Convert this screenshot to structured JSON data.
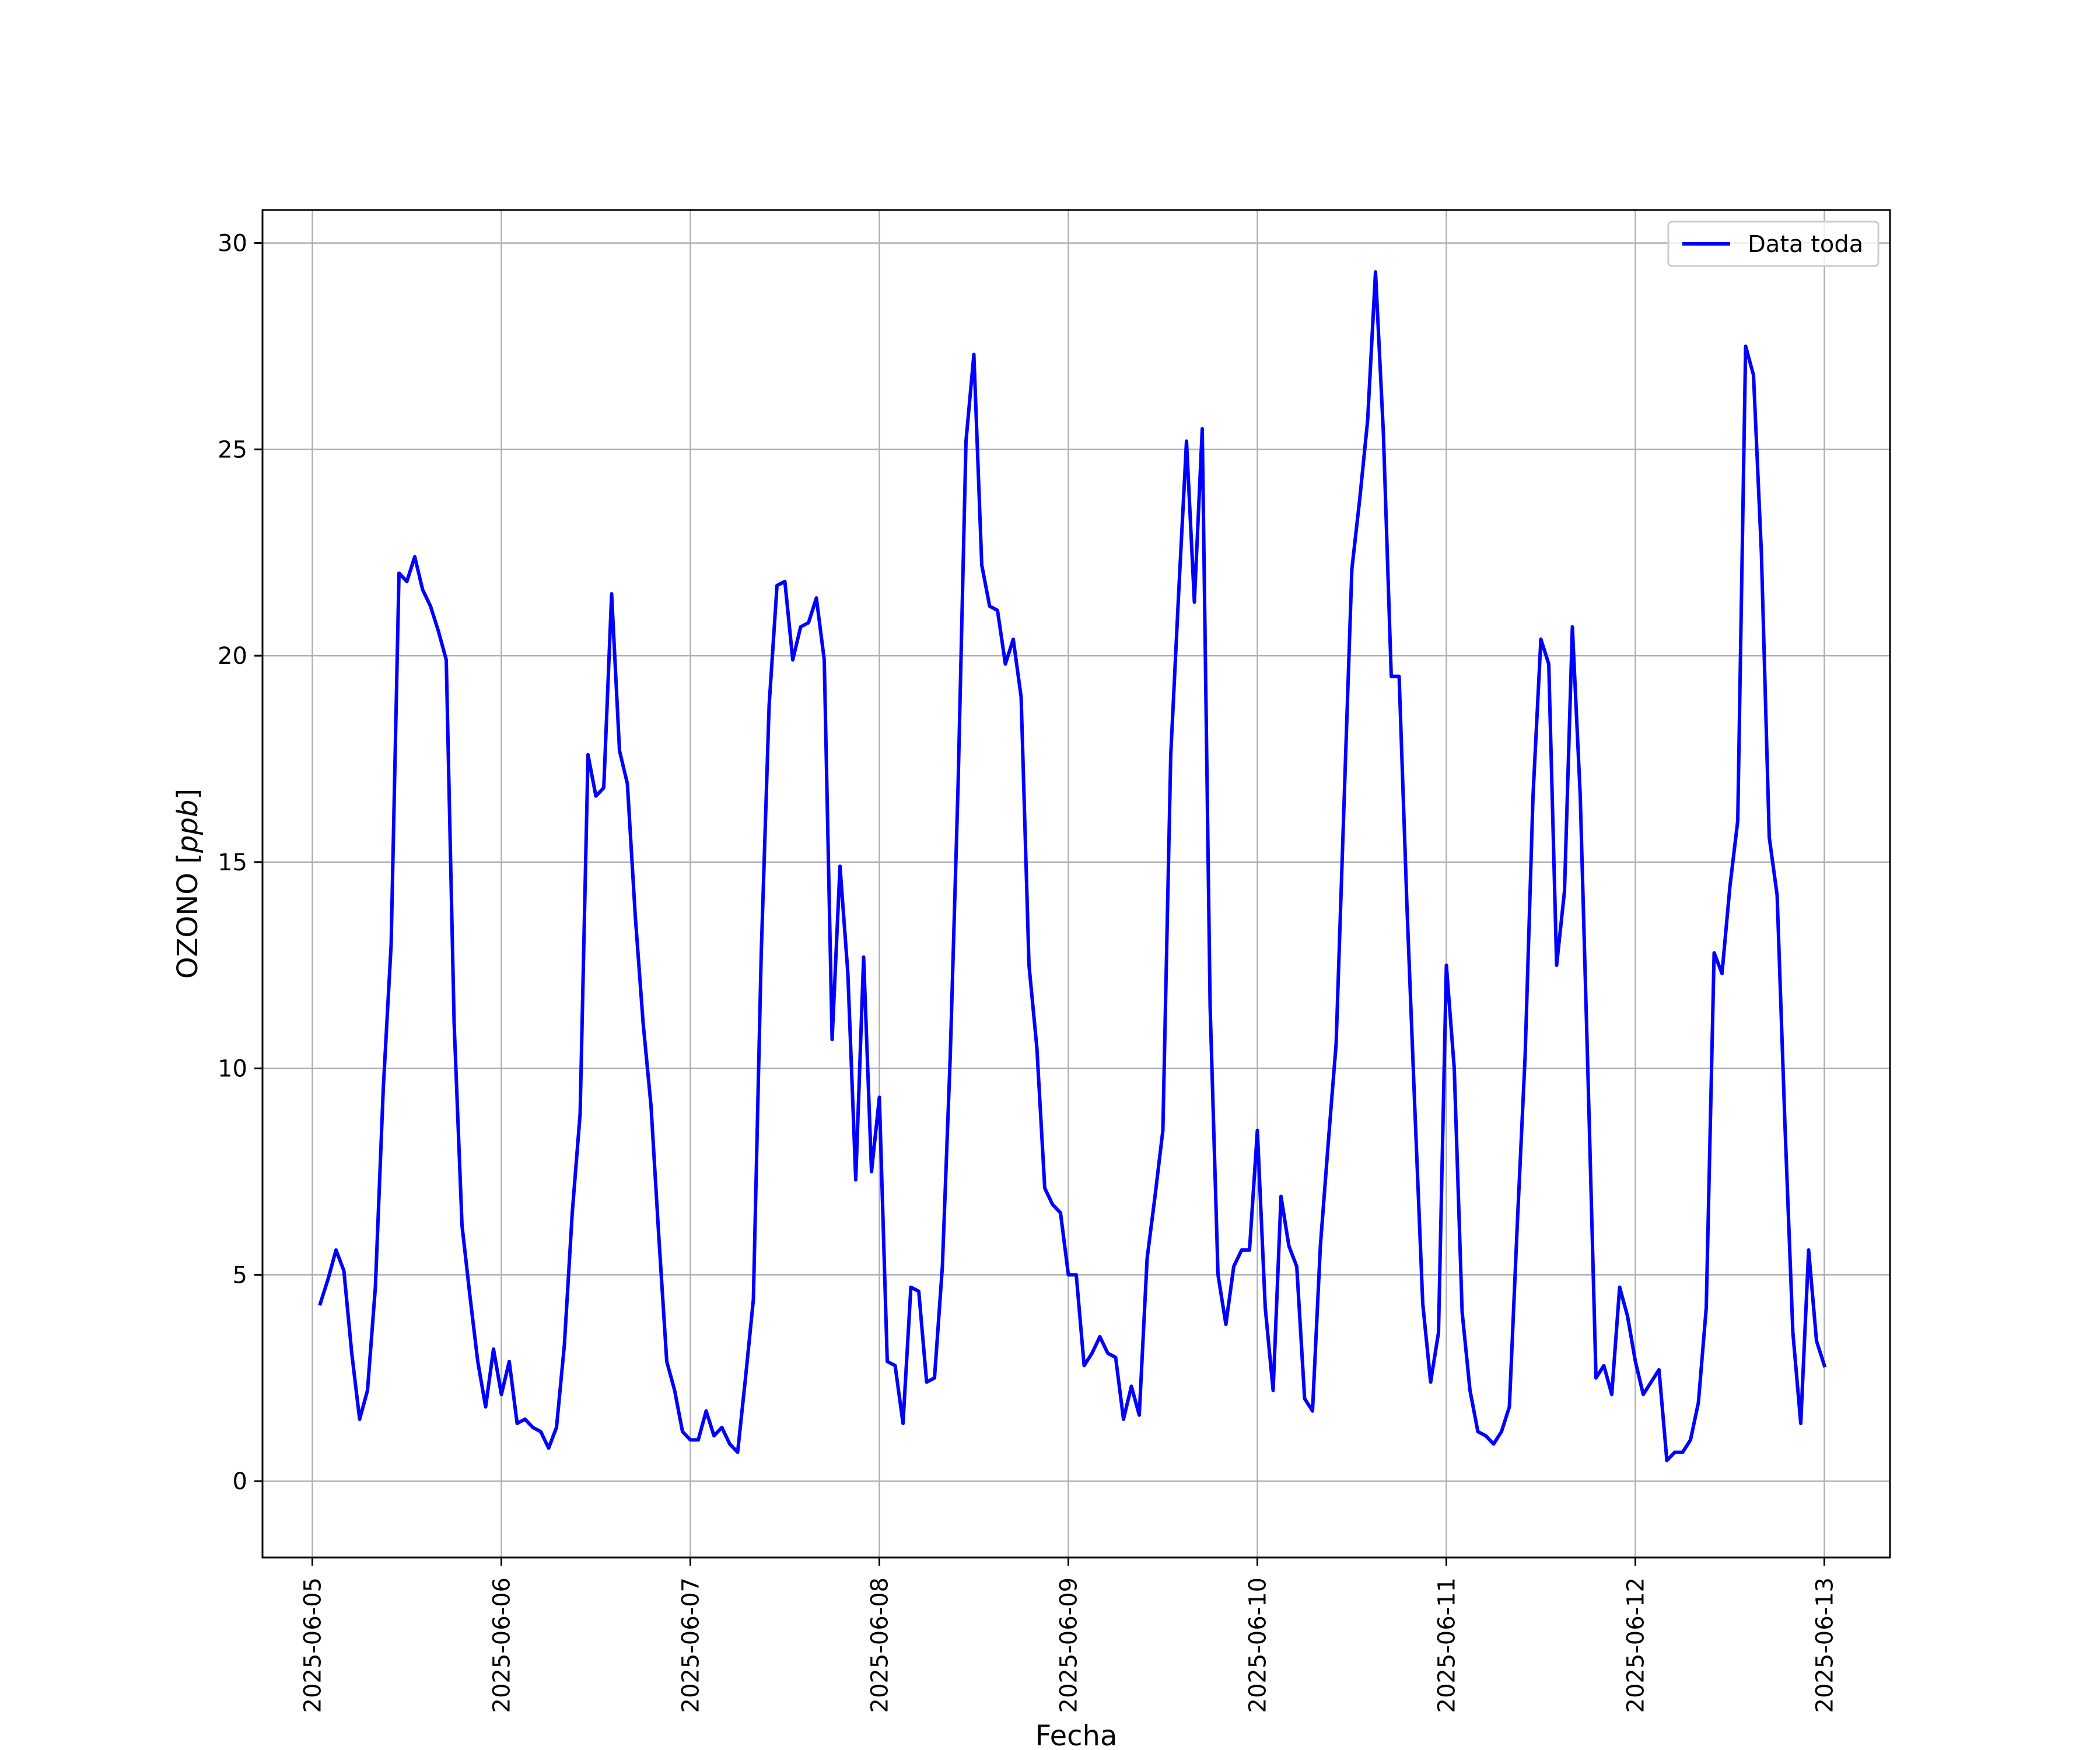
{
  "chart_data": {
    "type": "line",
    "title": "",
    "xlabel": "Fecha",
    "ylabel_main": "OZONO",
    "ylabel_unit": "ppb",
    "ylim": [
      -1.85,
      30.8
    ],
    "xlim": [
      "2025-06-04T17:40",
      "2025-06-13T08:20"
    ],
    "grid": true,
    "legend": "top-right",
    "x_ticks": [
      "2025-06-05",
      "2025-06-06",
      "2025-06-07",
      "2025-06-08",
      "2025-06-09",
      "2025-06-10",
      "2025-06-11",
      "2025-06-12",
      "2025-06-13"
    ],
    "y_ticks": [
      0,
      5,
      10,
      15,
      20,
      25,
      30
    ],
    "colors": {
      "series": "#0000ff",
      "grid": "#b0b0b0",
      "axes": "#000000"
    },
    "series": [
      {
        "name": "Data toda",
        "x": [
          "2025-06-05T01:00",
          "2025-06-05T02:00",
          "2025-06-05T03:00",
          "2025-06-05T04:00",
          "2025-06-05T05:00",
          "2025-06-05T06:00",
          "2025-06-05T07:00",
          "2025-06-05T08:00",
          "2025-06-05T09:00",
          "2025-06-05T10:00",
          "2025-06-05T11:00",
          "2025-06-05T12:00",
          "2025-06-05T13:00",
          "2025-06-05T14:00",
          "2025-06-05T15:00",
          "2025-06-05T16:00",
          "2025-06-05T17:00",
          "2025-06-05T18:00",
          "2025-06-05T19:00",
          "2025-06-05T20:00",
          "2025-06-05T21:00",
          "2025-06-05T22:00",
          "2025-06-05T23:00",
          "2025-06-06T00:00",
          "2025-06-06T01:00",
          "2025-06-06T02:00",
          "2025-06-06T03:00",
          "2025-06-06T04:00",
          "2025-06-06T05:00",
          "2025-06-06T06:00",
          "2025-06-06T07:00",
          "2025-06-06T08:00",
          "2025-06-06T09:00",
          "2025-06-06T10:00",
          "2025-06-06T11:00",
          "2025-06-06T12:00",
          "2025-06-06T13:00",
          "2025-06-06T14:00",
          "2025-06-06T15:00",
          "2025-06-06T16:00",
          "2025-06-06T17:00",
          "2025-06-06T18:00",
          "2025-06-06T19:00",
          "2025-06-06T20:00",
          "2025-06-06T21:00",
          "2025-06-06T22:00",
          "2025-06-06T23:00",
          "2025-06-07T00:00",
          "2025-06-07T01:00",
          "2025-06-07T02:00",
          "2025-06-07T03:00",
          "2025-06-07T04:00",
          "2025-06-07T05:00",
          "2025-06-07T06:00",
          "2025-06-07T07:00",
          "2025-06-07T08:00",
          "2025-06-07T09:00",
          "2025-06-07T10:00",
          "2025-06-07T11:00",
          "2025-06-07T12:00",
          "2025-06-07T13:00",
          "2025-06-07T14:00",
          "2025-06-07T15:00",
          "2025-06-07T16:00",
          "2025-06-07T17:00",
          "2025-06-07T18:00",
          "2025-06-07T19:00",
          "2025-06-07T20:00",
          "2025-06-07T21:00",
          "2025-06-07T22:00",
          "2025-06-07T23:00",
          "2025-06-08T00:00",
          "2025-06-08T01:00",
          "2025-06-08T02:00",
          "2025-06-08T03:00",
          "2025-06-08T04:00",
          "2025-06-08T05:00",
          "2025-06-08T06:00",
          "2025-06-08T07:00",
          "2025-06-08T08:00",
          "2025-06-08T09:00",
          "2025-06-08T10:00",
          "2025-06-08T11:00",
          "2025-06-08T12:00",
          "2025-06-08T13:00",
          "2025-06-08T14:00",
          "2025-06-08T15:00",
          "2025-06-08T16:00",
          "2025-06-08T17:00",
          "2025-06-08T18:00",
          "2025-06-08T19:00",
          "2025-06-08T20:00",
          "2025-06-08T21:00",
          "2025-06-08T22:00",
          "2025-06-08T23:00",
          "2025-06-09T00:00",
          "2025-06-09T01:00",
          "2025-06-09T02:00",
          "2025-06-09T03:00",
          "2025-06-09T04:00",
          "2025-06-09T05:00",
          "2025-06-09T06:00",
          "2025-06-09T07:00",
          "2025-06-09T08:00",
          "2025-06-09T09:00",
          "2025-06-09T10:00",
          "2025-06-09T11:00",
          "2025-06-09T12:00",
          "2025-06-09T13:00",
          "2025-06-09T14:00",
          "2025-06-09T15:00",
          "2025-06-09T16:00",
          "2025-06-09T17:00",
          "2025-06-09T18:00",
          "2025-06-09T19:00",
          "2025-06-09T20:00",
          "2025-06-09T21:00",
          "2025-06-09T22:00",
          "2025-06-09T23:00",
          "2025-06-10T00:00",
          "2025-06-10T01:00",
          "2025-06-10T02:00",
          "2025-06-10T03:00",
          "2025-06-10T04:00",
          "2025-06-10T05:00",
          "2025-06-10T06:00",
          "2025-06-10T07:00",
          "2025-06-10T08:00",
          "2025-06-10T09:00",
          "2025-06-10T10:00",
          "2025-06-10T11:00",
          "2025-06-10T12:00",
          "2025-06-10T13:00",
          "2025-06-10T14:00",
          "2025-06-10T15:00",
          "2025-06-10T16:00",
          "2025-06-10T17:00",
          "2025-06-10T18:00",
          "2025-06-10T19:00",
          "2025-06-10T20:00",
          "2025-06-10T21:00",
          "2025-06-10T22:00",
          "2025-06-10T23:00",
          "2025-06-11T00:00",
          "2025-06-11T01:00",
          "2025-06-11T02:00",
          "2025-06-11T03:00",
          "2025-06-11T04:00",
          "2025-06-11T05:00",
          "2025-06-11T06:00",
          "2025-06-11T07:00",
          "2025-06-11T08:00",
          "2025-06-11T09:00",
          "2025-06-11T10:00",
          "2025-06-11T11:00",
          "2025-06-11T12:00",
          "2025-06-11T13:00",
          "2025-06-11T14:00",
          "2025-06-11T15:00",
          "2025-06-11T16:00",
          "2025-06-11T17:00",
          "2025-06-11T18:00",
          "2025-06-11T19:00",
          "2025-06-11T20:00",
          "2025-06-11T21:00",
          "2025-06-11T22:00",
          "2025-06-11T23:00",
          "2025-06-12T00:00",
          "2025-06-12T01:00",
          "2025-06-12T02:00",
          "2025-06-12T03:00",
          "2025-06-12T04:00",
          "2025-06-12T05:00",
          "2025-06-12T06:00",
          "2025-06-12T07:00",
          "2025-06-12T08:00",
          "2025-06-12T09:00",
          "2025-06-12T10:00",
          "2025-06-12T11:00",
          "2025-06-12T12:00",
          "2025-06-12T13:00",
          "2025-06-12T14:00",
          "2025-06-12T15:00",
          "2025-06-12T16:00",
          "2025-06-12T17:00",
          "2025-06-12T18:00",
          "2025-06-12T19:00",
          "2025-06-12T20:00",
          "2025-06-12T21:00",
          "2025-06-12T22:00",
          "2025-06-12T23:00",
          "2025-06-13T00:00"
        ],
        "y": [
          4.3,
          4.9,
          5.6,
          5.1,
          3.1,
          1.5,
          2.2,
          4.7,
          9.5,
          13.0,
          22.0,
          21.8,
          22.4,
          21.6,
          21.2,
          20.6,
          19.9,
          11.1,
          6.2,
          4.5,
          2.9,
          1.8,
          3.2,
          2.1,
          2.9,
          1.4,
          1.5,
          1.3,
          1.2,
          0.8,
          1.3,
          3.3,
          6.5,
          8.9,
          17.6,
          16.6,
          16.8,
          21.5,
          17.7,
          16.9,
          13.7,
          11.1,
          9.1,
          5.9,
          2.9,
          2.2,
          1.2,
          1.0,
          1.0,
          1.7,
          1.1,
          1.3,
          0.9,
          0.7,
          2.5,
          4.4,
          12.8,
          18.8,
          21.7,
          21.8,
          19.9,
          20.7,
          20.8,
          21.4,
          19.9,
          10.7,
          14.9,
          12.3,
          7.3,
          12.7,
          7.5,
          9.3,
          2.9,
          2.8,
          1.4,
          4.7,
          4.6,
          2.4,
          2.5,
          5.2,
          10.3,
          16.9,
          25.2,
          27.3,
          22.2,
          21.2,
          21.1,
          19.8,
          20.4,
          19.0,
          12.5,
          10.5,
          7.1,
          6.7,
          6.5,
          5.0,
          5.0,
          2.8,
          3.1,
          3.5,
          3.1,
          3.0,
          1.5,
          2.3,
          1.6,
          5.4,
          6.9,
          8.5,
          17.6,
          21.5,
          25.2,
          21.3,
          25.5,
          11.5,
          5.0,
          3.8,
          5.2,
          5.6,
          5.6,
          8.5,
          4.2,
          2.2,
          6.9,
          5.7,
          5.2,
          2.0,
          1.7,
          5.7,
          8.2,
          10.6,
          16.4,
          22.1,
          23.8,
          25.7,
          29.3,
          25.4,
          19.5,
          19.5,
          13.9,
          9.0,
          4.3,
          2.4,
          3.6,
          12.5,
          10.0,
          4.1,
          2.2,
          1.2,
          1.1,
          0.9,
          1.2,
          1.8,
          6.2,
          10.3,
          16.6,
          20.4,
          19.8,
          12.5,
          14.3,
          20.7,
          16.6,
          9.7,
          2.5,
          2.8,
          2.1,
          4.7,
          4.0,
          2.9,
          2.1,
          2.4,
          2.7,
          0.5,
          0.7,
          0.7,
          1.0,
          1.9,
          4.2,
          12.8,
          12.3,
          14.4,
          16.0,
          27.5,
          26.8,
          22.5,
          15.6,
          14.2,
          8.6,
          3.6,
          1.4,
          5.6,
          3.4,
          2.8
        ]
      }
    ]
  }
}
